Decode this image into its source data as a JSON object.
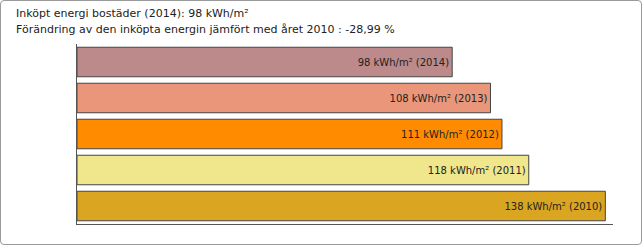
{
  "chart_data": {
    "type": "bar",
    "title": "Inköpt energi bostäder (2014): 98 kWh/m²",
    "subtitle": "Förändring av den inköpta energin jämfört med året 2010 : -28,99 %",
    "orientation": "horizontal",
    "categories": [
      "2014",
      "2013",
      "2012",
      "2011",
      "2010"
    ],
    "values": [
      98,
      108,
      111,
      118,
      138
    ],
    "value_labels": [
      "98 kWh/m² (2014)",
      "108 kWh/m² (2013)",
      "111 kWh/m² (2012)",
      "118 kWh/m² (2011)",
      "138 kWh/m² (2010)"
    ],
    "colors": [
      "#bc8a8a",
      "#e9967a",
      "#ff8c00",
      "#f0e68c",
      "#daa520"
    ],
    "xlim": [
      0,
      140
    ],
    "data_labels": true,
    "tick_labels": false,
    "grid": false
  }
}
